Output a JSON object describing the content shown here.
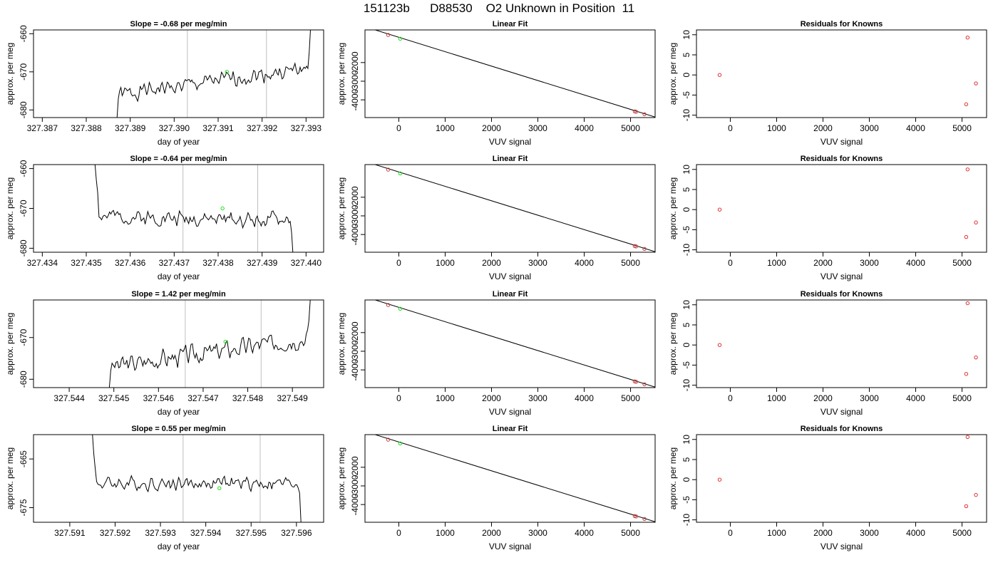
{
  "figure": {
    "title": "151123b      D88530    O2 Unknown in Position  11"
  },
  "chart_data": [
    {
      "type": "line",
      "panel": "slope",
      "row": 1,
      "title": "Slope =  -0.68  per meg/min",
      "xlabel": "day of year",
      "ylabel": "approx. per meg",
      "xlim": [
        327.3868,
        327.3934
      ],
      "ylim": [
        -682,
        -659
      ],
      "xticks": [
        327.387,
        327.388,
        327.389,
        327.39,
        327.391,
        327.392,
        327.393
      ],
      "xtick_labels": [
        "327.387",
        "327.388",
        "327.389",
        "327.390",
        "327.391",
        "327.392",
        "327.393"
      ],
      "yticks": [
        -660,
        -670,
        -680
      ],
      "ytick_labels": [
        "-660",
        "-670",
        "-680"
      ],
      "vlines": [
        327.3903,
        327.3921
      ],
      "highlight": {
        "x": 327.3912,
        "y": -670
      },
      "line": {
        "x_start": 327.3887,
        "x_end": 327.3931,
        "start_values": [
          -682,
          -677
        ],
        "end_values": [
          -665,
          -659
        ],
        "baseline_start": -676,
        "baseline_end": -669,
        "noise": 1.4,
        "seed": 1
      }
    },
    {
      "type": "scatter",
      "panel": "fit",
      "row": 1,
      "title": "Linear Fit",
      "xlabel": "VUV signal",
      "ylabel": "approx. per meg",
      "xlim": [
        -730,
        5530
      ],
      "ylim": [
        -4950,
        -250
      ],
      "xticks": [
        0,
        1000,
        2000,
        3000,
        4000,
        5000
      ],
      "xtick_labels": [
        "0",
        "1000",
        "2000",
        "3000",
        "4000",
        "5000"
      ],
      "yticks": [
        -2000,
        -3000,
        -4000
      ],
      "ytick_labels": [
        "-2000",
        "-3000",
        "-4000"
      ],
      "fit_line": {
        "x": [
          -730,
          5530
        ],
        "y": [
          -80,
          -4920
        ]
      },
      "points_known": [
        {
          "x": -230,
          "y": -520
        },
        {
          "x": 5090,
          "y": -4620
        },
        {
          "x": 5120,
          "y": -4640
        },
        {
          "x": 5300,
          "y": -4770
        }
      ],
      "points_unknown": [
        {
          "x": 30,
          "y": -720
        }
      ]
    },
    {
      "type": "scatter",
      "panel": "residuals",
      "row": 1,
      "title": "Residuals for Knowns",
      "xlabel": "VUV signal",
      "ylabel": "approx. per meg",
      "xlim": [
        -730,
        5530
      ],
      "ylim": [
        -10.6,
        11.2
      ],
      "xticks": [
        0,
        1000,
        2000,
        3000,
        4000,
        5000
      ],
      "xtick_labels": [
        "0",
        "1000",
        "2000",
        "3000",
        "4000",
        "5000"
      ],
      "yticks": [
        10,
        5,
        0,
        -5,
        -10
      ],
      "ytick_labels": [
        "10",
        "5",
        "0",
        "-5",
        "-10"
      ],
      "points": [
        {
          "x": -230,
          "y": 0
        },
        {
          "x": 5090,
          "y": -7.3
        },
        {
          "x": 5120,
          "y": 9.3
        },
        {
          "x": 5300,
          "y": -2.1
        }
      ]
    },
    {
      "type": "line",
      "panel": "slope",
      "row": 2,
      "title": "Slope =  -0.64  per meg/min",
      "xlabel": "day of year",
      "ylabel": "approx. per meg",
      "xlim": [
        327.4338,
        327.4404
      ],
      "ylim": [
        -681,
        -659
      ],
      "xticks": [
        327.434,
        327.435,
        327.436,
        327.437,
        327.438,
        327.439,
        327.44
      ],
      "xtick_labels": [
        "327.434",
        "327.435",
        "327.436",
        "327.437",
        "327.438",
        "327.439",
        "327.440"
      ],
      "yticks": [
        -660,
        -670,
        -680
      ],
      "ytick_labels": [
        "-660",
        "-670",
        "-680"
      ],
      "vlines": [
        327.4372,
        327.4389
      ],
      "highlight": {
        "x": 327.4381,
        "y": -670
      },
      "line": {
        "x_start": 327.4352,
        "x_end": 327.4397,
        "start_values": [
          -659,
          -663,
          -666
        ],
        "end_values": [
          -676,
          -681
        ],
        "baseline_start": -672,
        "baseline_end": -673,
        "noise": 1.3,
        "seed": 2
      }
    },
    {
      "type": "scatter",
      "panel": "fit",
      "row": 2,
      "title": "Linear Fit",
      "xlabel": "VUV signal",
      "ylabel": "approx. per meg",
      "xlim": [
        -730,
        5530
      ],
      "ylim": [
        -4950,
        -250
      ],
      "xticks": [
        0,
        1000,
        2000,
        3000,
        4000,
        5000
      ],
      "xtick_labels": [
        "0",
        "1000",
        "2000",
        "3000",
        "4000",
        "5000"
      ],
      "yticks": [
        -2000,
        -3000,
        -4000
      ],
      "ytick_labels": [
        "-2000",
        "-3000",
        "-4000"
      ],
      "fit_line": {
        "x": [
          -730,
          5530
        ],
        "y": [
          -80,
          -4920
        ]
      },
      "points_known": [
        {
          "x": -230,
          "y": -520
        },
        {
          "x": 5090,
          "y": -4620
        },
        {
          "x": 5120,
          "y": -4640
        },
        {
          "x": 5300,
          "y": -4770
        }
      ],
      "points_unknown": [
        {
          "x": 30,
          "y": -720
        }
      ]
    },
    {
      "type": "scatter",
      "panel": "residuals",
      "row": 2,
      "title": "Residuals for Knowns",
      "xlabel": "VUV signal",
      "ylabel": "approx. per meg",
      "xlim": [
        -730,
        5530
      ],
      "ylim": [
        -10.6,
        11.2
      ],
      "xticks": [
        0,
        1000,
        2000,
        3000,
        4000,
        5000
      ],
      "xtick_labels": [
        "0",
        "1000",
        "2000",
        "3000",
        "4000",
        "5000"
      ],
      "yticks": [
        10,
        5,
        0,
        -5,
        -10
      ],
      "ytick_labels": [
        "10",
        "5",
        "0",
        "-5",
        "-10"
      ],
      "points": [
        {
          "x": -230,
          "y": 0
        },
        {
          "x": 5090,
          "y": -6.8
        },
        {
          "x": 5120,
          "y": 10
        },
        {
          "x": 5300,
          "y": -3.2
        }
      ]
    },
    {
      "type": "line",
      "panel": "slope",
      "row": 3,
      "title": "Slope =  1.42  per meg/min",
      "xlabel": "day of year",
      "ylabel": "approx. per meg",
      "xlim": [
        327.5432,
        327.5497
      ],
      "ylim": [
        -682,
        -661
      ],
      "xticks": [
        327.544,
        327.545,
        327.546,
        327.547,
        327.548,
        327.549
      ],
      "xtick_labels": [
        "327.544",
        "327.545",
        "327.546",
        "327.547",
        "327.548",
        "327.549"
      ],
      "yticks": [
        -670,
        -680
      ],
      "ytick_labels": [
        "-670",
        "-680"
      ],
      "vlines": [
        327.5466,
        327.5483
      ],
      "highlight": {
        "x": 327.5475,
        "y": -671
      },
      "line": {
        "x_start": 327.5449,
        "x_end": 327.5494,
        "start_values": [
          -682,
          -678
        ],
        "end_values": [
          -666,
          -661
        ],
        "baseline_start": -677,
        "baseline_end": -670,
        "noise": 1.6,
        "seed": 3
      }
    },
    {
      "type": "scatter",
      "panel": "fit",
      "row": 3,
      "title": "Linear Fit",
      "xlabel": "VUV signal",
      "ylabel": "approx. per meg",
      "xlim": [
        -730,
        5530
      ],
      "ylim": [
        -4950,
        -250
      ],
      "xticks": [
        0,
        1000,
        2000,
        3000,
        4000,
        5000
      ],
      "xtick_labels": [
        "0",
        "1000",
        "2000",
        "3000",
        "4000",
        "5000"
      ],
      "yticks": [
        -2000,
        -3000,
        -4000
      ],
      "ytick_labels": [
        "-2000",
        "-3000",
        "-4000"
      ],
      "fit_line": {
        "x": [
          -730,
          5530
        ],
        "y": [
          -80,
          -4920
        ]
      },
      "points_known": [
        {
          "x": -230,
          "y": -520
        },
        {
          "x": 5090,
          "y": -4620
        },
        {
          "x": 5120,
          "y": -4640
        },
        {
          "x": 5300,
          "y": -4770
        }
      ],
      "points_unknown": [
        {
          "x": 30,
          "y": -720
        }
      ]
    },
    {
      "type": "scatter",
      "panel": "residuals",
      "row": 3,
      "title": "Residuals for Knowns",
      "xlabel": "VUV signal",
      "ylabel": "approx. per meg",
      "xlim": [
        -730,
        5530
      ],
      "ylim": [
        -10.6,
        11.2
      ],
      "xticks": [
        0,
        1000,
        2000,
        3000,
        4000,
        5000
      ],
      "xtick_labels": [
        "0",
        "1000",
        "2000",
        "3000",
        "4000",
        "5000"
      ],
      "yticks": [
        10,
        5,
        0,
        -5,
        -10
      ],
      "ytick_labels": [
        "10",
        "5",
        "0",
        "-5",
        "-10"
      ],
      "points": [
        {
          "x": -230,
          "y": 0
        },
        {
          "x": 5090,
          "y": -7.2
        },
        {
          "x": 5120,
          "y": 10.4
        },
        {
          "x": 5300,
          "y": -3.1
        }
      ]
    },
    {
      "type": "line",
      "panel": "slope",
      "row": 4,
      "title": "Slope =  0.55  per meg/min",
      "xlabel": "day of year",
      "ylabel": "approx. per meg",
      "xlim": [
        327.5902,
        327.5966
      ],
      "ylim": [
        -678,
        -660
      ],
      "xticks": [
        327.591,
        327.592,
        327.593,
        327.594,
        327.595,
        327.596
      ],
      "xtick_labels": [
        "327.591",
        "327.592",
        "327.593",
        "327.594",
        "327.595",
        "327.596"
      ],
      "yticks": [
        -665,
        -675
      ],
      "ytick_labels": [
        "-665",
        "-675"
      ],
      "vlines": [
        327.5935,
        327.5952
      ],
      "highlight": {
        "x": 327.5943,
        "y": -671
      },
      "line": {
        "x_start": 327.5915,
        "x_end": 327.5961,
        "start_values": [
          -660,
          -664,
          -667
        ],
        "end_values": [
          -672,
          -678
        ],
        "baseline_start": -670,
        "baseline_end": -670,
        "noise": 1.0,
        "seed": 4
      }
    },
    {
      "type": "scatter",
      "panel": "fit",
      "row": 4,
      "title": "Linear Fit",
      "xlabel": "VUV signal",
      "ylabel": "approx. per meg",
      "xlim": [
        -730,
        5530
      ],
      "ylim": [
        -4950,
        -250
      ],
      "xticks": [
        0,
        1000,
        2000,
        3000,
        4000,
        5000
      ],
      "xtick_labels": [
        "0",
        "1000",
        "2000",
        "3000",
        "4000",
        "5000"
      ],
      "yticks": [
        -2000,
        -3000,
        -4000
      ],
      "ytick_labels": [
        "-2000",
        "-3000",
        "-4000"
      ],
      "fit_line": {
        "x": [
          -730,
          5530
        ],
        "y": [
          -80,
          -4920
        ]
      },
      "points_known": [
        {
          "x": -230,
          "y": -520
        },
        {
          "x": 5090,
          "y": -4620
        },
        {
          "x": 5120,
          "y": -4640
        },
        {
          "x": 5300,
          "y": -4770
        }
      ],
      "points_unknown": [
        {
          "x": 30,
          "y": -720
        }
      ]
    },
    {
      "type": "scatter",
      "panel": "residuals",
      "row": 4,
      "title": "Residuals for Knowns",
      "xlabel": "VUV signal",
      "ylabel": "approx. per meg",
      "xlim": [
        -730,
        5530
      ],
      "ylim": [
        -10.6,
        11.2
      ],
      "xticks": [
        0,
        1000,
        2000,
        3000,
        4000,
        5000
      ],
      "xtick_labels": [
        "0",
        "1000",
        "2000",
        "3000",
        "4000",
        "5000"
      ],
      "yticks": [
        10,
        5,
        0,
        -5,
        -10
      ],
      "ytick_labels": [
        "10",
        "5",
        "0",
        "-5",
        "-10"
      ],
      "points": [
        {
          "x": -230,
          "y": 0
        },
        {
          "x": 5090,
          "y": -6.6
        },
        {
          "x": 5120,
          "y": 10.6
        },
        {
          "x": 5300,
          "y": -3.8
        }
      ]
    }
  ],
  "colors": {
    "axis": "#000000",
    "line": "#000000",
    "vline": "#bfbfbf",
    "known_point": "#e03030",
    "unknown_point": "#22dd22",
    "fit_point": "#c04040"
  }
}
